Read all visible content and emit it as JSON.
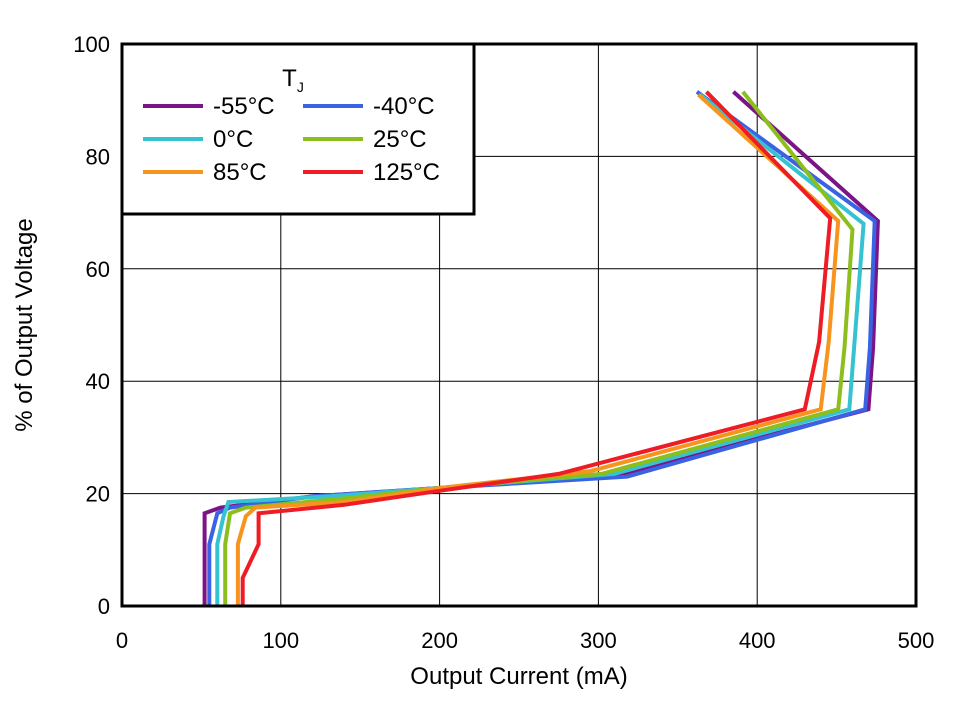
{
  "chart_data": {
    "type": "line",
    "xlabel": "Output Current (mA)",
    "ylabel": "% of Output Voltage",
    "xlim": [
      0,
      500
    ],
    "ylim": [
      0,
      100
    ],
    "xticks": [
      0,
      100,
      200,
      300,
      400,
      500
    ],
    "yticks": [
      0,
      20,
      40,
      60,
      80,
      100
    ],
    "grid": true,
    "legend": {
      "title": "T",
      "title_subscript": "J",
      "placement": "top-left"
    },
    "series": [
      {
        "name": "-55°C",
        "color": "#7B1487",
        "points": [
          [
            52,
            0
          ],
          [
            52,
            16.5
          ],
          [
            62,
            17.5
          ],
          [
            120,
            19.5
          ],
          [
            200,
            21
          ],
          [
            315,
            23.5
          ],
          [
            470,
            35
          ],
          [
            473,
            46
          ],
          [
            476,
            68.5
          ],
          [
            385,
            91.5
          ]
        ]
      },
      {
        "name": "-40°C",
        "color": "#3A63E3",
        "points": [
          [
            55,
            0
          ],
          [
            55,
            11
          ],
          [
            60,
            16.5
          ],
          [
            68,
            17.5
          ],
          [
            120,
            19.5
          ],
          [
            200,
            21
          ],
          [
            318,
            23
          ],
          [
            468,
            35
          ],
          [
            471,
            46
          ],
          [
            474,
            68.5
          ],
          [
            362,
            91.5
          ]
        ]
      },
      {
        "name": "0°C",
        "color": "#35C2D1",
        "points": [
          [
            60,
            0
          ],
          [
            60,
            11
          ],
          [
            64,
            16
          ],
          [
            67,
            18.5
          ],
          [
            130,
            19.5
          ],
          [
            200,
            21
          ],
          [
            310,
            23.5
          ],
          [
            458,
            35
          ],
          [
            461,
            46
          ],
          [
            467,
            68
          ],
          [
            364,
            91
          ]
        ]
      },
      {
        "name": "25°C",
        "color": "#8CBF1E",
        "points": [
          [
            65,
            0
          ],
          [
            65,
            11
          ],
          [
            68,
            16.5
          ],
          [
            78,
            17.5
          ],
          [
            135,
            19
          ],
          [
            200,
            21
          ],
          [
            302,
            23.5
          ],
          [
            451,
            35
          ],
          [
            455,
            46
          ],
          [
            460,
            67
          ],
          [
            391,
            91.5
          ]
        ]
      },
      {
        "name": "85°C",
        "color": "#F7941D",
        "points": [
          [
            73,
            0
          ],
          [
            73,
            11
          ],
          [
            78,
            16
          ],
          [
            84,
            17.5
          ],
          [
            140,
            18.5
          ],
          [
            200,
            21
          ],
          [
            295,
            24
          ],
          [
            440,
            35
          ],
          [
            445,
            47
          ],
          [
            451,
            68.5
          ],
          [
            363,
            91
          ]
        ]
      },
      {
        "name": "125°C",
        "color": "#EE1C25",
        "points": [
          [
            76,
            0
          ],
          [
            76,
            5
          ],
          [
            86,
            11
          ],
          [
            86,
            16.5
          ],
          [
            140,
            18
          ],
          [
            200,
            20.5
          ],
          [
            275,
            23.5
          ],
          [
            430,
            35
          ],
          [
            439,
            47
          ],
          [
            446,
            69
          ],
          [
            368,
            91.5
          ]
        ]
      }
    ]
  }
}
